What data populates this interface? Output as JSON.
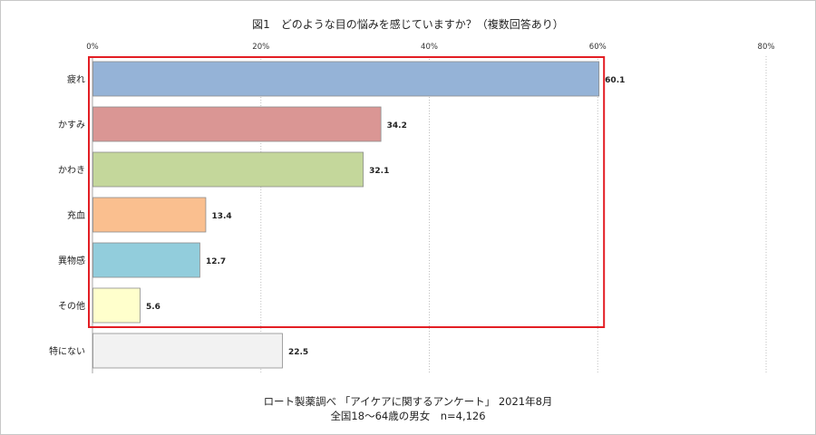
{
  "chart_data": {
    "type": "bar",
    "orientation": "horizontal",
    "title": "図1　どのような目の悩みを感じていますか？（複数回答あり）",
    "xlim": [
      0,
      80
    ],
    "x_ticks": [
      "0%",
      "20%",
      "40%",
      "60%",
      "80%"
    ],
    "x_tick_values": [
      0,
      20,
      40,
      60,
      80
    ],
    "grid": "vertical dotted",
    "categories": [
      "疲れ",
      "かすみ",
      "かわき",
      "充血",
      "異物感",
      "その他",
      "特にない"
    ],
    "values": [
      60.1,
      34.2,
      32.1,
      13.4,
      12.7,
      5.6,
      22.5
    ],
    "value_labels": [
      "60.1",
      "34.2",
      "32.1",
      "13.4",
      "12.7",
      "5.6",
      "22.5"
    ],
    "colors": [
      "#95b3d7",
      "#da9694",
      "#c4d79b",
      "#fabf8f",
      "#92cddc",
      "#ffffcc",
      "#f2f2f2"
    ],
    "highlight": {
      "color": "#e31e24",
      "covers": [
        "疲れ",
        "かすみ",
        "かわき",
        "充血",
        "異物感",
        "その他"
      ]
    }
  },
  "caption": {
    "line1": "ロート製薬調べ 「アイケアに関するアンケート」 2021年8月",
    "line2": "全国18～64歳の男女　n=4,126"
  }
}
